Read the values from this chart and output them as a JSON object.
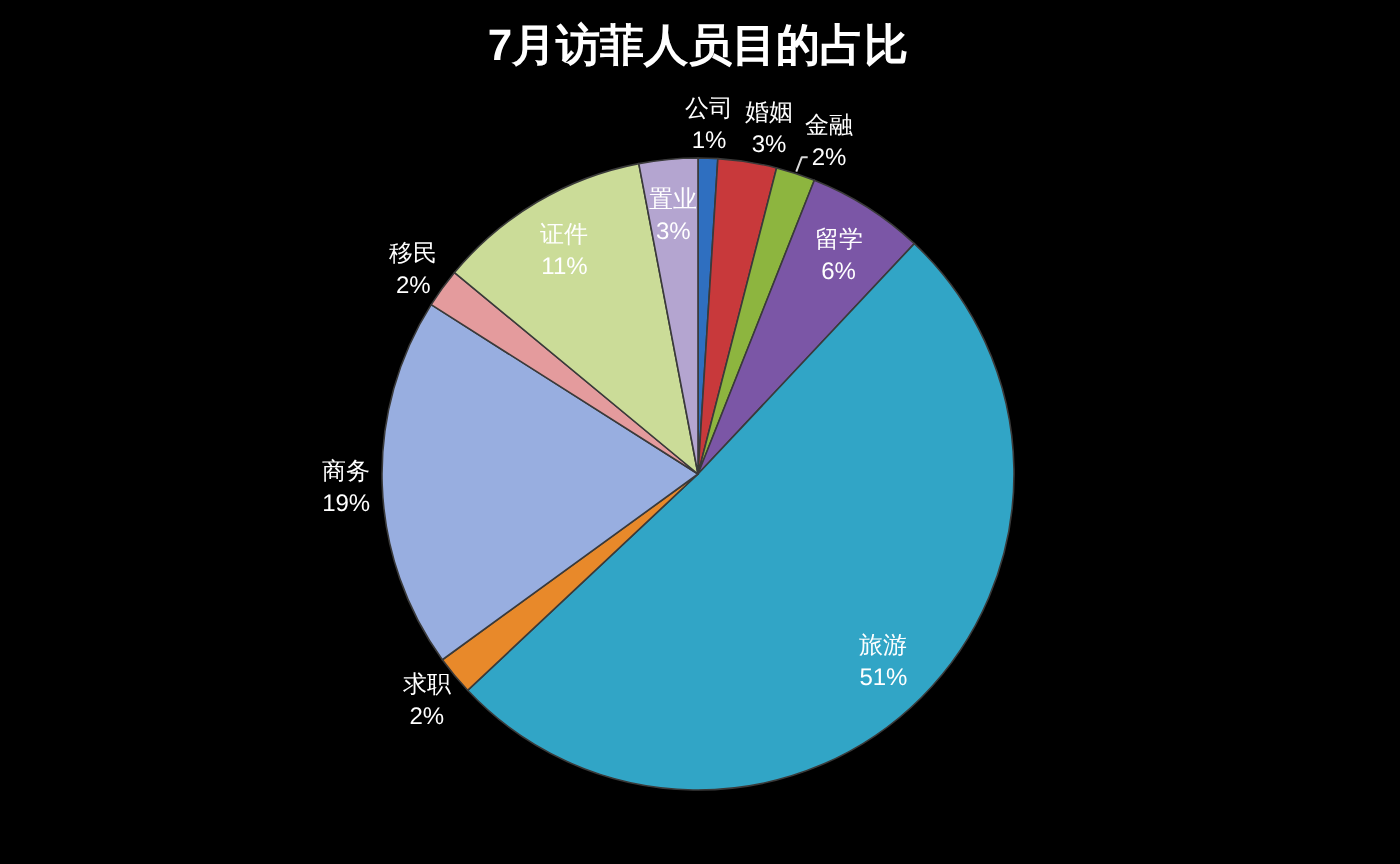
{
  "chart_data": {
    "type": "pie",
    "title": "7月访菲人员目的占比",
    "categories": [
      "公司",
      "婚姻",
      "金融",
      "留学",
      "旅游",
      "求职",
      "商务",
      "移民",
      "证件",
      "置业"
    ],
    "values": [
      1,
      3,
      2,
      6,
      51,
      2,
      19,
      2,
      11,
      3
    ],
    "colors": [
      "#2f6fc0",
      "#c8393b",
      "#8db53f",
      "#7b56a6",
      "#31a5c6",
      "#e8892a",
      "#98aee0",
      "#e49b9d",
      "#cbdc98",
      "#b4a5d0"
    ],
    "value_labels": [
      "1%",
      "3%",
      "2%",
      "6%",
      "51%",
      "2%",
      "19%",
      "2%",
      "11%",
      "3%"
    ]
  }
}
